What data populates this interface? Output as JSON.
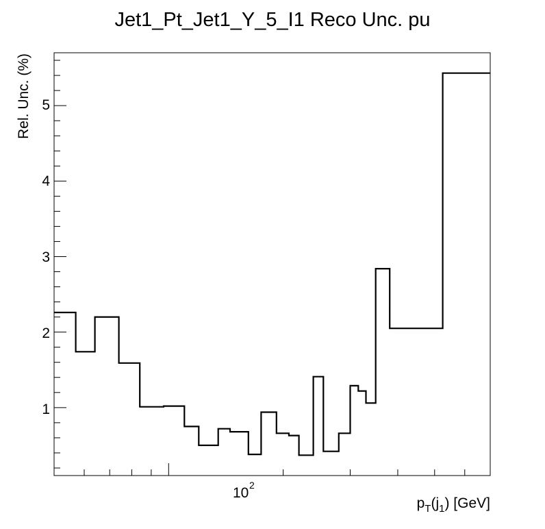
{
  "chart_data": {
    "type": "line",
    "style": "step-histogram",
    "title": "Jet1_Pt_Jet1_Y_5_I1 Reco Unc. pu",
    "xlabel": "p_T(j_1) [GeV]",
    "xlabel_parts": {
      "p": "p",
      "sub_T": "T",
      "open": "(j",
      "sub_1": "1",
      "close": ") [GeV]"
    },
    "ylabel": "Rel. Unc. (%)",
    "x_scale": "log",
    "xlim": [
      50,
      700
    ],
    "ylim": [
      0.1,
      5.7
    ],
    "x_tick_labels": [
      {
        "base": "10",
        "exp": "2"
      }
    ],
    "y_tick_labels": [
      "1",
      "2",
      "3",
      "4",
      "5"
    ],
    "grid": false,
    "legend": "none",
    "line_color": "#000000",
    "bin_edges": [
      50,
      57,
      64,
      74,
      84,
      97,
      110,
      120,
      135,
      145,
      162,
      175,
      192,
      207,
      220,
      240,
      255,
      280,
      300,
      315,
      330,
      350,
      381,
      525,
      700
    ],
    "values": [
      2.26,
      1.74,
      2.2,
      1.59,
      1.01,
      1.02,
      0.75,
      0.5,
      0.72,
      0.68,
      0.38,
      0.94,
      0.66,
      0.63,
      0.37,
      1.41,
      0.42,
      0.66,
      1.29,
      1.22,
      1.06,
      2.84,
      2.05,
      5.43
    ]
  }
}
